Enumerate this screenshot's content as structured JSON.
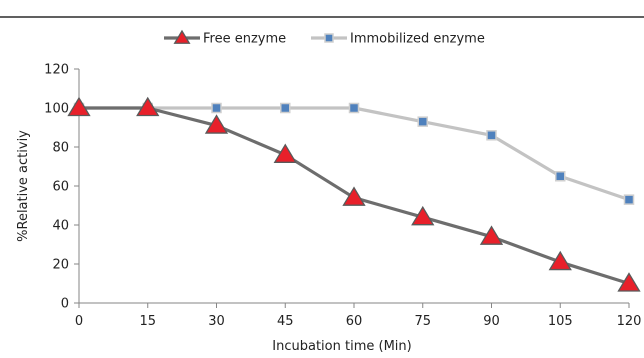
{
  "chart_data": {
    "type": "line",
    "title": "",
    "xlabel": "Incubation time (Min)",
    "ylabel": "%Relative activiy",
    "x": [
      0,
      15,
      30,
      45,
      60,
      75,
      90,
      105,
      120
    ],
    "xlim": [
      0,
      120
    ],
    "ylim": [
      0,
      120
    ],
    "yticks": [
      0,
      20,
      40,
      60,
      80,
      100,
      120
    ],
    "grid": false,
    "legend_position": "top",
    "series": [
      {
        "name": "Free enzyme",
        "values": [
          100,
          100,
          91,
          76,
          54,
          44,
          34,
          21,
          10
        ],
        "line_color": "#6d6d6d",
        "marker": "triangle",
        "marker_color": "#e8202a"
      },
      {
        "name": "Immobilized enzyme",
        "values": [
          100,
          100,
          100,
          100,
          100,
          93,
          86,
          65,
          53
        ],
        "line_color": "#c3c3c3",
        "marker": "square",
        "marker_color": "#4f81bd"
      }
    ]
  }
}
